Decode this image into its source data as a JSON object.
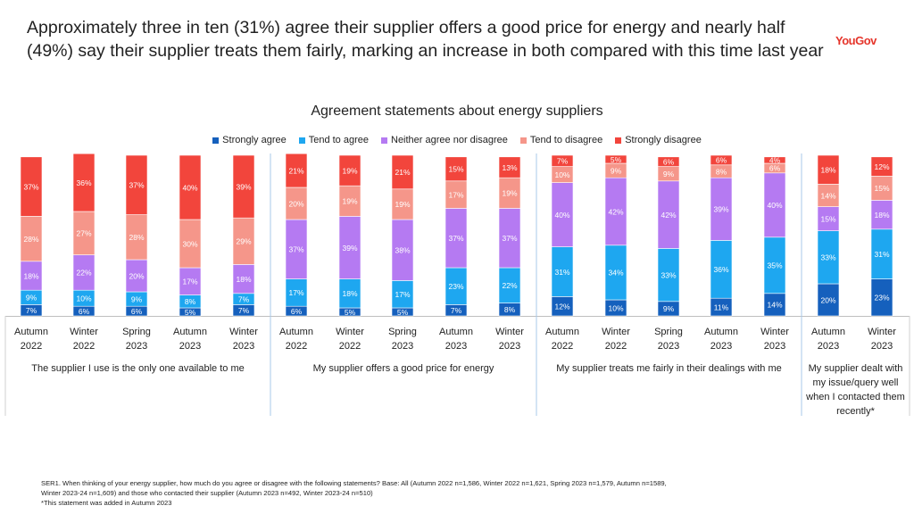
{
  "headline": "Approximately three in ten (31%) agree their supplier offers a good price for energy and nearly half (49%) say their supplier treats them fairly, marking an increase in both compared with this time last year",
  "logo": "YouGov",
  "footnote": {
    "line1": "SER1. When thinking of your energy supplier, how much do you agree or disagree with the following statements? Base: All (Autumn 2022 n=1,586, Winter 2022 n=1,621, Spring 2023 n=1,579, Autumn n=1589,",
    "line2": "Winter 2023-24 n=1,609) and those who contacted their supplier (Autumn 2023 n=492, Winter 2023-24 n=510)",
    "line3": "*This statement was added in Autumn 2023"
  },
  "chart_data": {
    "type": "bar",
    "stacked": true,
    "title": "Agreement statements about energy suppliers",
    "legend_position": "top",
    "series": [
      {
        "name": "Strongly agree",
        "color": "#1560bd"
      },
      {
        "name": "Tend to agree",
        "color": "#1ea7f0"
      },
      {
        "name": "Neither agree nor disagree",
        "color": "#b57af2"
      },
      {
        "name": "Tend to disagree",
        "color": "#f5968a"
      },
      {
        "name": "Strongly disagree",
        "color": "#f2453c"
      }
    ],
    "groups": [
      {
        "label": "The supplier I use is the only one available to me",
        "bars": [
          {
            "season": "Autumn",
            "year": "2022",
            "values": [
              7,
              9,
              18,
              28,
              37
            ]
          },
          {
            "season": "Winter",
            "year": "2022",
            "values": [
              6,
              10,
              22,
              27,
              36
            ]
          },
          {
            "season": "Spring",
            "year": "2023",
            "values": [
              6,
              9,
              20,
              28,
              37
            ]
          },
          {
            "season": "Autumn",
            "year": "2023",
            "values": [
              5,
              8,
              17,
              30,
              40
            ]
          },
          {
            "season": "Winter",
            "year": "2023",
            "values": [
              7,
              7,
              18,
              29,
              39
            ]
          }
        ]
      },
      {
        "label": "My supplier offers a good price for energy",
        "bars": [
          {
            "season": "Autumn",
            "year": "2022",
            "values": [
              6,
              17,
              37,
              20,
              21
            ]
          },
          {
            "season": "Winter",
            "year": "2022",
            "values": [
              5,
              18,
              39,
              19,
              19
            ]
          },
          {
            "season": "Spring",
            "year": "2023",
            "values": [
              5,
              17,
              38,
              19,
              21
            ]
          },
          {
            "season": "Autumn",
            "year": "2023",
            "values": [
              7,
              23,
              37,
              17,
              15
            ]
          },
          {
            "season": "Winter",
            "year": "2023",
            "values": [
              8,
              22,
              37,
              19,
              13
            ]
          }
        ]
      },
      {
        "label": "My supplier treats me fairly in their dealings with me",
        "bars": [
          {
            "season": "Autumn",
            "year": "2022",
            "values": [
              12,
              31,
              40,
              10,
              7
            ]
          },
          {
            "season": "Winter",
            "year": "2022",
            "values": [
              10,
              34,
              42,
              9,
              5
            ]
          },
          {
            "season": "Spring",
            "year": "2023",
            "values": [
              9,
              33,
              42,
              9,
              6
            ]
          },
          {
            "season": "Autumn",
            "year": "2023",
            "values": [
              11,
              36,
              39,
              8,
              6
            ]
          },
          {
            "season": "Winter",
            "year": "2023",
            "values": [
              14,
              35,
              40,
              6,
              4
            ]
          }
        ]
      },
      {
        "label": "My supplier dealt with my issue/query well when I contacted them recently*",
        "bars": [
          {
            "season": "Autumn",
            "year": "2023",
            "values": [
              20,
              33,
              15,
              14,
              18
            ]
          },
          {
            "season": "Winter",
            "year": "2023",
            "values": [
              23,
              31,
              18,
              15,
              12
            ]
          }
        ]
      }
    ]
  }
}
